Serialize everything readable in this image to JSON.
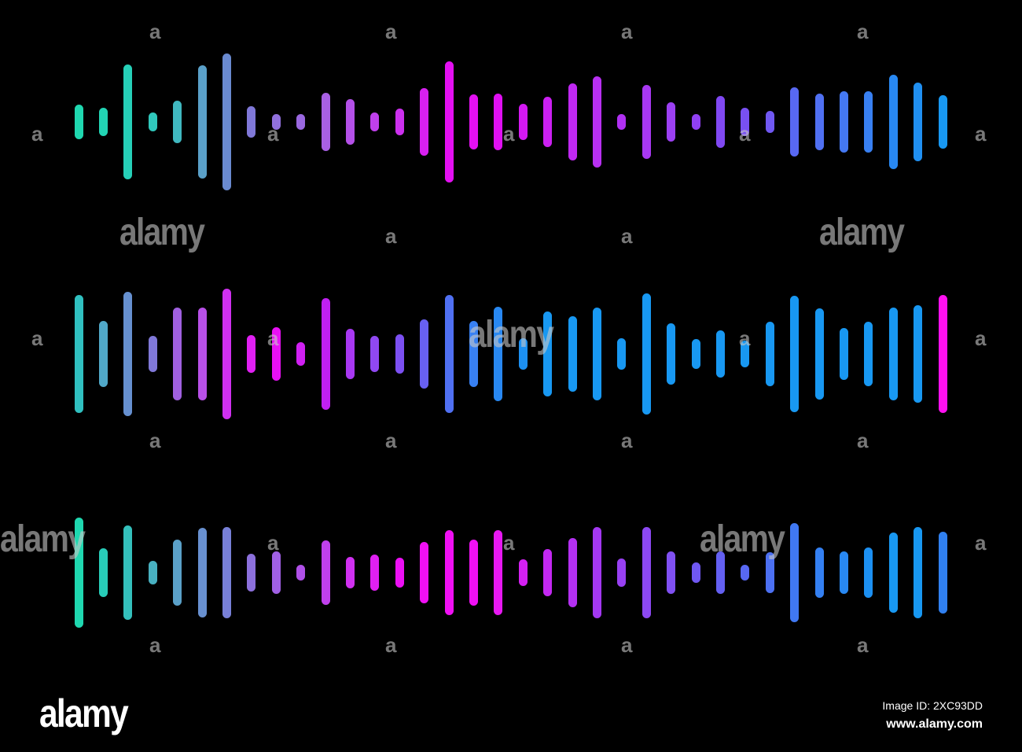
{
  "waveforms": [
    {
      "levels": [
        44,
        36,
        146,
        24,
        54,
        144,
        174,
        40,
        20,
        20,
        74,
        58,
        24,
        34,
        86,
        154,
        70,
        72,
        46,
        64,
        98,
        116,
        20,
        94,
        50,
        20,
        66,
        36,
        28,
        88,
        72,
        78,
        78,
        120,
        100,
        68
      ],
      "colors": [
        "#1fd8b0",
        "#22d4b4",
        "#26d0b8",
        "#30c8bc",
        "#40b8c0",
        "#5aa0c8",
        "#6a8ad0",
        "#8078d8",
        "#9070dc",
        "#9a68e0",
        "#a860e4",
        "#b450e8",
        "#c040ec",
        "#cc30ee",
        "#d820f0",
        "#e410f2",
        "#e410f2",
        "#e010f2",
        "#d418f2",
        "#cc20f2",
        "#c028f2",
        "#b830f2",
        "#b030f2",
        "#a838f2",
        "#9c40f2",
        "#9040f2",
        "#8048f2",
        "#7850f2",
        "#7058f2",
        "#5868f2",
        "#5070f2",
        "#4478f2",
        "#3880f2",
        "#2888f2",
        "#2090f2",
        "#1898f2"
      ]
    },
    {
      "levels": [
        150,
        84,
        158,
        46,
        118,
        118,
        166,
        48,
        68,
        30,
        142,
        64,
        46,
        50,
        88,
        150,
        84,
        120,
        40,
        108,
        96,
        118,
        40,
        154,
        78,
        38,
        60,
        34,
        82,
        148,
        116,
        66,
        82,
        118,
        124,
        150
      ],
      "colors": [
        "#30c0c0",
        "#50a8c8",
        "#6690d0",
        "#8078d8",
        "#a060e0",
        "#b850e8",
        "#d030f0",
        "#e020f2",
        "#e810f4",
        "#d020f2",
        "#c020f2",
        "#a838f2",
        "#9048f2",
        "#7c50f2",
        "#6860f2",
        "#5070f2",
        "#3880f2",
        "#2888f2",
        "#1c90f2",
        "#1898f2",
        "#1898f2",
        "#1898f2",
        "#1898f2",
        "#1898f2",
        "#1898f2",
        "#1898f2",
        "#1898f2",
        "#1898f2",
        "#1898f2",
        "#1898f2",
        "#1898f2",
        "#1898f2",
        "#1898f2",
        "#1898f2",
        "#1898f2",
        "#ff10f0"
      ]
    },
    {
      "levels": [
        140,
        62,
        120,
        30,
        84,
        114,
        116,
        48,
        54,
        20,
        82,
        40,
        46,
        38,
        78,
        108,
        84,
        108,
        34,
        60,
        88,
        116,
        36,
        116,
        54,
        26,
        54,
        20,
        52,
        126,
        64,
        54,
        64,
        102,
        116,
        104
      ],
      "colors": [
        "#1fd8b0",
        "#28ccb8",
        "#34c0bc",
        "#48b0c0",
        "#5aa0c8",
        "#6890d0",
        "#7880d8",
        "#8c70dc",
        "#a060e4",
        "#b050e8",
        "#c040ec",
        "#d030f0",
        "#e020f2",
        "#ec10f4",
        "#f010f4",
        "#f010f4",
        "#f010f4",
        "#e818f2",
        "#d420f2",
        "#c428f2",
        "#b430f2",
        "#a438f2",
        "#9840f2",
        "#8c48f2",
        "#8050f2",
        "#7058f2",
        "#6460f2",
        "#5868f2",
        "#4c70f2",
        "#4078f2",
        "#3480f2",
        "#2888f2",
        "#1c90f2",
        "#1898f2",
        "#1898f2",
        "#3080f0"
      ]
    }
  ],
  "watermark": {
    "letter": "a",
    "word": "alamy"
  },
  "footer": {
    "logo": "alamy",
    "image_id": "Image ID: 2XC93DD",
    "url": "www.alamy.com"
  }
}
